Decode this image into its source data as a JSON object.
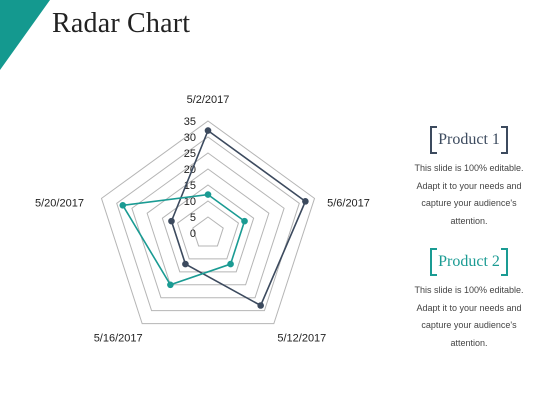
{
  "colors": {
    "accent": "#14998f",
    "product1": "#3c4a5e",
    "product2": "#1a9b93",
    "grid": "#b5b5b5",
    "text": "#222222"
  },
  "page": {
    "title": "Radar Chart"
  },
  "legend": [
    {
      "label": "Product 1",
      "text": "This slide is 100% editable. Adapt it to your needs and capture your audience's attention."
    },
    {
      "label": "Product 2",
      "text": "This slide is 100% editable. Adapt it to your needs and capture your audience's attention."
    }
  ],
  "chart_data": {
    "type": "radar",
    "categories": [
      "5/2/2017",
      "5/6/2017",
      "5/12/2017",
      "5/16/2017",
      "5/20/2017"
    ],
    "rlim": [
      0,
      35
    ],
    "ticks": [
      "0",
      "5",
      "10",
      "15",
      "20",
      "25",
      "30",
      "35"
    ],
    "grid": true,
    "series": [
      {
        "name": "Product 1",
        "values": [
          32,
          32,
          28,
          12,
          12
        ]
      },
      {
        "name": "Product 2",
        "values": [
          12,
          12,
          12,
          20,
          28
        ]
      }
    ]
  }
}
